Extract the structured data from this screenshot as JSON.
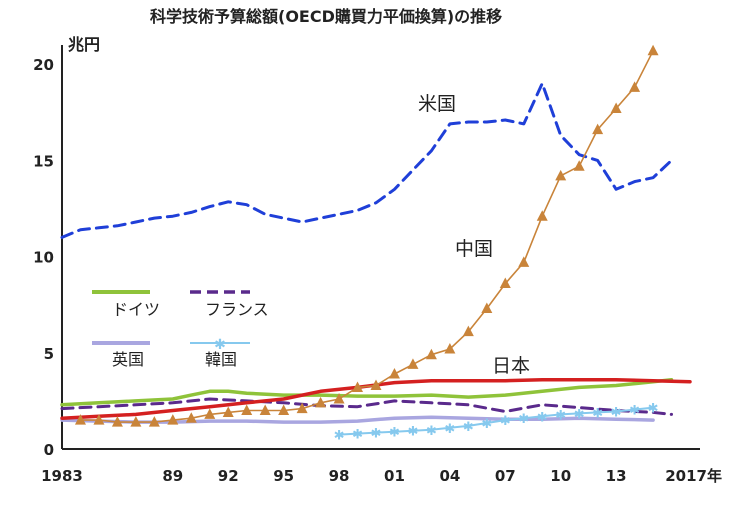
{
  "chart_data": {
    "type": "line",
    "title": "科学技術予算総額(OECD購買力平価換算)の推移",
    "ylabel": "兆円",
    "xlabel_suffix": "年",
    "ylim": [
      0,
      21
    ],
    "xlim": [
      1983,
      2017
    ],
    "yticks": [
      0,
      5,
      10,
      15,
      20
    ],
    "xticks": [
      {
        "x": 1983,
        "label": "1983"
      },
      {
        "x": 1989,
        "label": "89"
      },
      {
        "x": 1992,
        "label": "92"
      },
      {
        "x": 1995,
        "label": "95"
      },
      {
        "x": 1998,
        "label": "98"
      },
      {
        "x": 2001,
        "label": "01"
      },
      {
        "x": 2004,
        "label": "04"
      },
      {
        "x": 2007,
        "label": "07"
      },
      {
        "x": 2010,
        "label": "10"
      },
      {
        "x": 2013,
        "label": "13"
      },
      {
        "x": 2017,
        "label": "2017年"
      }
    ],
    "grid": false,
    "series": [
      {
        "name": "米国",
        "color": "#1f3fd8",
        "style": "dashed",
        "x": [
          1983,
          1984,
          1985,
          1986,
          1987,
          1988,
          1989,
          1990,
          1991,
          1992,
          1993,
          1994,
          1995,
          1996,
          1997,
          1998,
          1999,
          2000,
          2001,
          2002,
          2003,
          2004,
          2005,
          2006,
          2007,
          2008,
          2009,
          2010,
          2011,
          2012,
          2013,
          2014,
          2015,
          2016
        ],
        "values": [
          11.0,
          11.4,
          11.5,
          11.6,
          11.8,
          12.0,
          12.1,
          12.3,
          12.6,
          12.85,
          12.7,
          12.2,
          12.0,
          11.8,
          12.0,
          12.2,
          12.4,
          12.8,
          13.5,
          14.5,
          15.5,
          16.9,
          17.0,
          17.0,
          17.1,
          16.9,
          19.0,
          16.3,
          15.3,
          15.0,
          13.5,
          13.9,
          14.1,
          15.0
        ]
      },
      {
        "name": "中国",
        "color": "#c9843a",
        "style": "triangle",
        "x": [
          1984,
          1985,
          1986,
          1987,
          1988,
          1989,
          1990,
          1991,
          1992,
          1993,
          1994,
          1995,
          1996,
          1997,
          1998,
          1999,
          2000,
          2001,
          2002,
          2003,
          2004,
          2005,
          2006,
          2007,
          2008,
          2009,
          2010,
          2011,
          2012,
          2013,
          2014,
          2015
        ],
        "values": [
          1.5,
          1.5,
          1.4,
          1.4,
          1.4,
          1.5,
          1.6,
          1.8,
          1.9,
          2.0,
          2.0,
          2.0,
          2.1,
          2.4,
          2.6,
          3.2,
          3.3,
          3.9,
          4.4,
          4.9,
          5.2,
          6.1,
          7.3,
          8.6,
          9.7,
          12.1,
          14.2,
          14.7,
          16.6,
          17.7,
          18.8,
          20.7
        ]
      },
      {
        "name": "日本",
        "color": "#d42020",
        "style": "solid",
        "x": [
          1983,
          1985,
          1987,
          1989,
          1991,
          1993,
          1995,
          1997,
          1999,
          2001,
          2003,
          2005,
          2007,
          2009,
          2011,
          2013,
          2015,
          2017
        ],
        "values": [
          1.6,
          1.7,
          1.8,
          2.0,
          2.2,
          2.4,
          2.6,
          3.0,
          3.2,
          3.45,
          3.55,
          3.55,
          3.55,
          3.6,
          3.6,
          3.6,
          3.55,
          3.5
        ]
      },
      {
        "name": "ドイツ",
        "color": "#8fc33a",
        "style": "solid",
        "x": [
          1983,
          1985,
          1987,
          1989,
          1990,
          1991,
          1992,
          1993,
          1995,
          1997,
          1999,
          2001,
          2003,
          2005,
          2007,
          2009,
          2011,
          2013,
          2015,
          2016
        ],
        "values": [
          2.3,
          2.4,
          2.5,
          2.6,
          2.8,
          3.0,
          3.0,
          2.9,
          2.8,
          2.8,
          2.75,
          2.75,
          2.8,
          2.7,
          2.8,
          3.0,
          3.2,
          3.3,
          3.5,
          3.6
        ]
      },
      {
        "name": "フランス",
        "color": "#5a2a8c",
        "style": "dashed",
        "x": [
          1983,
          1985,
          1987,
          1989,
          1991,
          1993,
          1995,
          1997,
          1999,
          2001,
          2003,
          2005,
          2007,
          2009,
          2011,
          2013,
          2015,
          2016
        ],
        "values": [
          2.1,
          2.2,
          2.3,
          2.4,
          2.6,
          2.5,
          2.4,
          2.25,
          2.2,
          2.5,
          2.4,
          2.3,
          1.95,
          2.3,
          2.15,
          2.0,
          1.9,
          1.8
        ]
      },
      {
        "name": "英国",
        "color": "#a9a6e0",
        "style": "solid",
        "x": [
          1983,
          1985,
          1987,
          1989,
          1991,
          1993,
          1995,
          1997,
          1999,
          2001,
          2003,
          2005,
          2007,
          2009,
          2011,
          2013,
          2015
        ],
        "values": [
          1.5,
          1.45,
          1.4,
          1.4,
          1.45,
          1.45,
          1.4,
          1.4,
          1.45,
          1.6,
          1.65,
          1.6,
          1.55,
          1.55,
          1.6,
          1.55,
          1.5
        ]
      },
      {
        "name": "韓国",
        "color": "#86c9ee",
        "style": "star",
        "x": [
          1998,
          1999,
          2000,
          2001,
          2002,
          2003,
          2004,
          2005,
          2006,
          2007,
          2008,
          2009,
          2010,
          2011,
          2012,
          2013,
          2014,
          2015
        ],
        "values": [
          0.75,
          0.8,
          0.85,
          0.9,
          0.95,
          1.0,
          1.1,
          1.2,
          1.35,
          1.5,
          1.6,
          1.7,
          1.8,
          1.85,
          1.9,
          1.95,
          2.05,
          2.15
        ]
      }
    ],
    "legend": {
      "placement": "left-middle",
      "entries": [
        "ドイツ",
        "フランス",
        "英国",
        "韓国"
      ]
    },
    "inline_labels": [
      "米国",
      "中国",
      "日本"
    ]
  }
}
